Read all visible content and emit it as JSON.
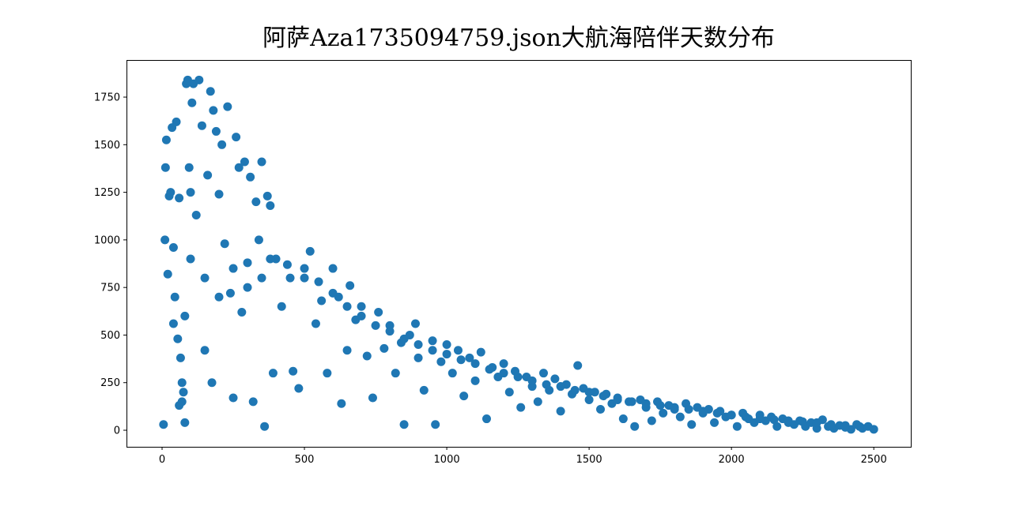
{
  "chart_data": {
    "type": "scatter",
    "title": "阿萨Aza1735094759.json大航海陪伴天数分布",
    "color": "#1f77b4",
    "xlim": [
      -125,
      2630
    ],
    "ylim": [
      -87,
      1945
    ],
    "xticks": [
      0,
      500,
      1000,
      1500,
      2000,
      2500
    ],
    "yticks": [
      0,
      250,
      500,
      750,
      1000,
      1250,
      1500,
      1750
    ],
    "x": [
      5,
      10,
      12,
      15,
      20,
      25,
      30,
      35,
      40,
      45,
      50,
      55,
      60,
      65,
      70,
      75,
      80,
      85,
      90,
      95,
      100,
      105,
      110,
      120,
      130,
      140,
      150,
      160,
      170,
      175,
      180,
      190,
      200,
      210,
      220,
      230,
      240,
      250,
      260,
      270,
      280,
      290,
      300,
      310,
      320,
      330,
      340,
      350,
      360,
      370,
      380,
      390,
      400,
      420,
      440,
      460,
      480,
      500,
      520,
      540,
      560,
      580,
      600,
      620,
      630,
      650,
      660,
      680,
      700,
      720,
      740,
      760,
      780,
      800,
      820,
      840,
      850,
      870,
      890,
      900,
      920,
      950,
      960,
      980,
      1000,
      1020,
      1040,
      1060,
      1080,
      1100,
      1120,
      1140,
      1160,
      1180,
      1200,
      1220,
      1240,
      1260,
      1280,
      1300,
      1320,
      1340,
      1360,
      1380,
      1400,
      1420,
      1440,
      1460,
      1480,
      1500,
      1520,
      1540,
      1560,
      1580,
      1600,
      1620,
      1640,
      1660,
      1680,
      1700,
      1720,
      1740,
      1760,
      1780,
      1800,
      1820,
      1840,
      1860,
      1880,
      1900,
      1920,
      1940,
      1960,
      1980,
      2000,
      2020,
      2040,
      2060,
      2080,
      2100,
      2120,
      2140,
      2160,
      2180,
      2200,
      2220,
      2240,
      2260,
      2280,
      2300,
      2320,
      2340,
      2360,
      2380,
      2400,
      2420,
      2440,
      2460,
      2480,
      2500,
      150,
      200,
      250,
      300,
      350,
      380,
      450,
      500,
      550,
      600,
      650,
      700,
      750,
      800,
      850,
      900,
      950,
      1000,
      1050,
      1100,
      1150,
      1200,
      1250,
      1300,
      1350,
      1400,
      1450,
      1500,
      1550,
      1600,
      1650,
      1700,
      1750,
      1800,
      1850,
      1900,
      1950,
      2000,
      2050,
      2100,
      2150,
      2200,
      2250,
      2300,
      2350,
      2400,
      2450,
      60,
      70,
      40,
      100,
      80
    ],
    "values": [
      30,
      1000,
      1380,
      1525,
      820,
      1230,
      1250,
      1590,
      960,
      700,
      1620,
      480,
      1220,
      380,
      150,
      200,
      40,
      1820,
      1840,
      1380,
      1250,
      1720,
      1820,
      1130,
      1840,
      1600,
      420,
      1340,
      1780,
      250,
      1680,
      1570,
      1240,
      1500,
      980,
      1700,
      720,
      170,
      1540,
      1380,
      620,
      1410,
      880,
      1330,
      150,
      1200,
      1000,
      1410,
      20,
      1230,
      1180,
      300,
      900,
      650,
      870,
      310,
      220,
      800,
      940,
      560,
      680,
      300,
      850,
      700,
      140,
      420,
      760,
      580,
      650,
      390,
      170,
      620,
      430,
      550,
      300,
      460,
      30,
      500,
      560,
      380,
      210,
      470,
      30,
      360,
      450,
      300,
      420,
      180,
      380,
      260,
      410,
      60,
      330,
      280,
      350,
      200,
      310,
      120,
      280,
      230,
      150,
      300,
      210,
      270,
      100,
      240,
      190,
      340,
      220,
      160,
      200,
      110,
      190,
      140,
      170,
      60,
      150,
      20,
      160,
      120,
      50,
      150,
      90,
      130,
      110,
      70,
      140,
      30,
      120,
      90,
      110,
      40,
      100,
      70,
      80,
      20,
      90,
      60,
      40,
      80,
      50,
      70,
      20,
      60,
      40,
      30,
      50,
      20,
      40,
      10,
      55,
      20,
      10,
      25,
      15,
      5,
      30,
      10,
      20,
      5,
      800,
      700,
      850,
      750,
      800,
      900,
      800,
      850,
      780,
      720,
      650,
      600,
      550,
      520,
      480,
      450,
      420,
      400,
      370,
      350,
      320,
      300,
      280,
      260,
      240,
      230,
      210,
      200,
      180,
      160,
      150,
      140,
      130,
      120,
      110,
      100,
      90,
      80,
      70,
      60,
      55,
      50,
      45,
      40,
      30,
      25,
      20,
      130,
      250,
      560,
      900,
      600
    ]
  }
}
